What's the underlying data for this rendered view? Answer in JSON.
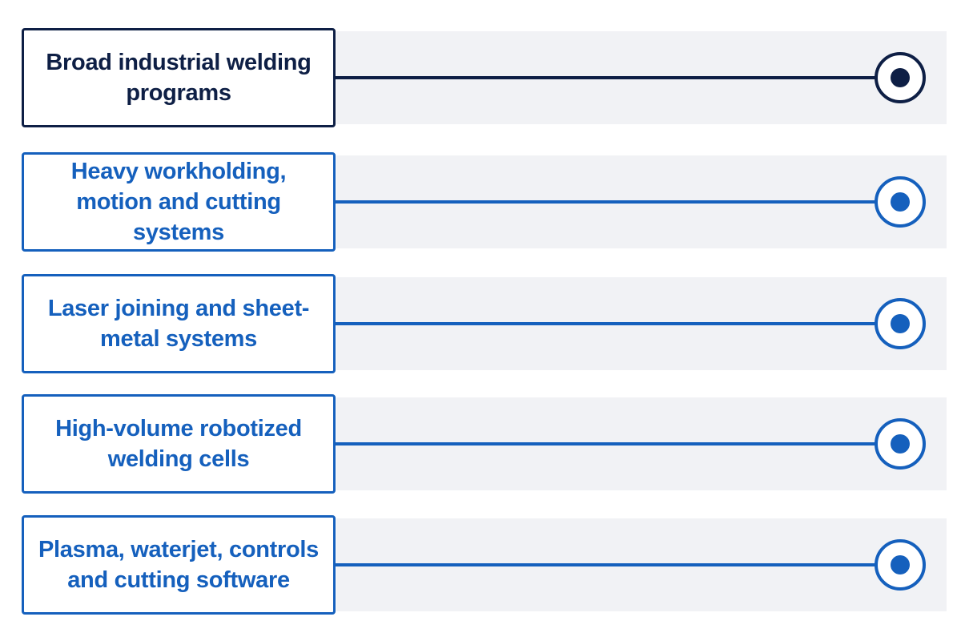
{
  "colors": {
    "selected": "#0e1f45",
    "default": "#1560bd",
    "band": "#f1f2f5"
  },
  "options": [
    {
      "label": "Broad industrial welding programs",
      "selected": true
    },
    {
      "label": "Heavy workholding, motion and cutting systems",
      "selected": false
    },
    {
      "label": "Laser joining and sheet-metal systems",
      "selected": false
    },
    {
      "label": "High-volume robotized welding cells",
      "selected": false
    },
    {
      "label": "Plasma, waterjet, controls and cutting software",
      "selected": false
    }
  ],
  "icons": {
    "knob": "radio-knob-icon"
  }
}
